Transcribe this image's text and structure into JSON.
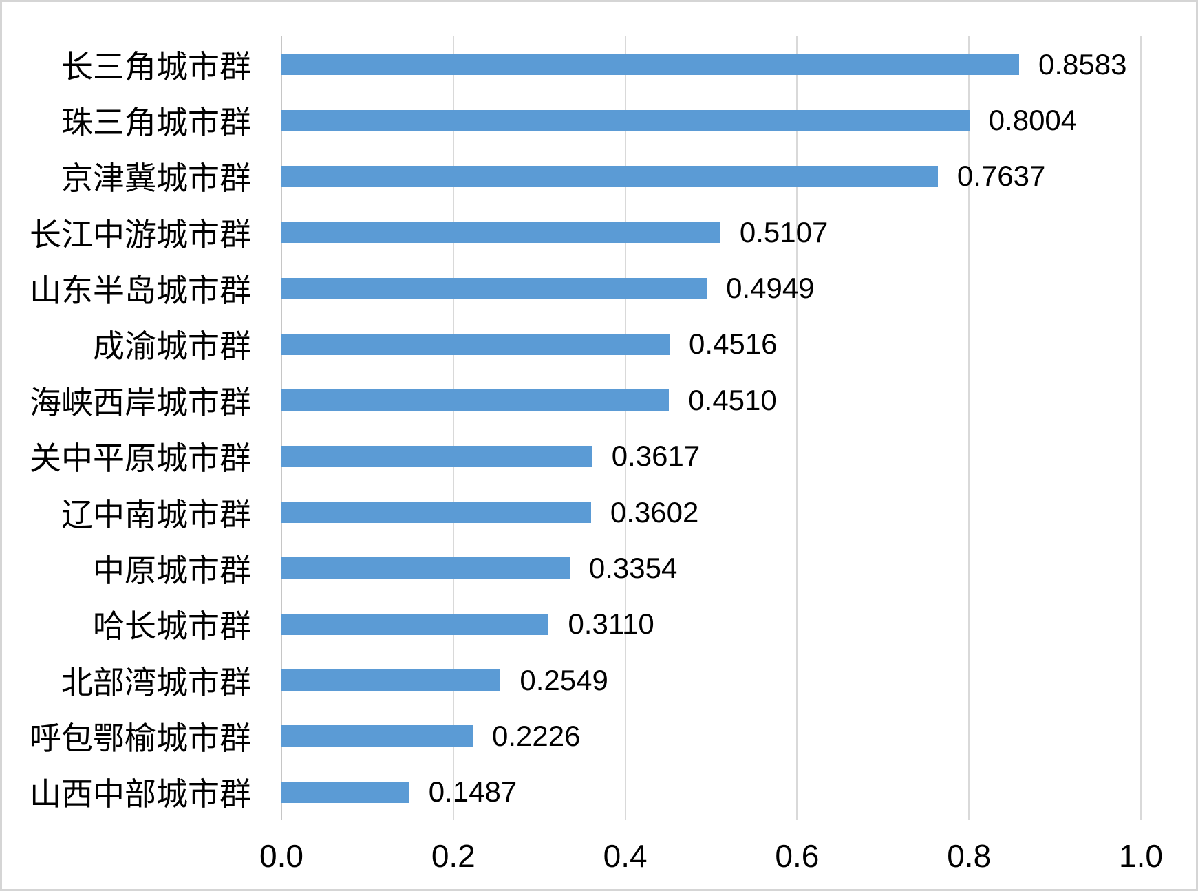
{
  "chart_data": {
    "type": "bar",
    "orientation": "horizontal",
    "title": "",
    "xlabel": "",
    "ylabel": "",
    "legend": "none",
    "grid": true,
    "categories": [
      "长三角城市群",
      "珠三角城市群",
      "京津冀城市群",
      "长江中游城市群",
      "山东半岛城市群",
      "成渝城市群",
      "海峡西岸城市群",
      "关中平原城市群",
      "辽中南城市群",
      "中原城市群",
      "哈长城市群",
      "北部湾城市群",
      "呼包鄂榆城市群",
      "山西中部城市群"
    ],
    "values": [
      0.8583,
      0.8004,
      0.7637,
      0.5107,
      0.4949,
      0.4516,
      0.451,
      0.3617,
      0.3602,
      0.3354,
      0.311,
      0.2549,
      0.2226,
      0.1487
    ],
    "value_labels": [
      "0.8583",
      "0.8004",
      "0.7637",
      "0.5107",
      "0.4949",
      "0.4516",
      "0.4510",
      "0.3617",
      "0.3602",
      "0.3354",
      "0.3110",
      "0.2549",
      "0.2226",
      "0.1487"
    ],
    "x_ticks": [
      "0.0",
      "0.2",
      "0.4",
      "0.6",
      "0.8",
      "1.0"
    ],
    "xlim": [
      0,
      1.0
    ],
    "bar_color": "#5B9BD5",
    "gridline_color": "#D9D9D9",
    "axis_line_color": "#C6C6C6",
    "text_color": "#000000",
    "background_color": "#FFFFFF",
    "border_color": "#D5D5D5"
  }
}
